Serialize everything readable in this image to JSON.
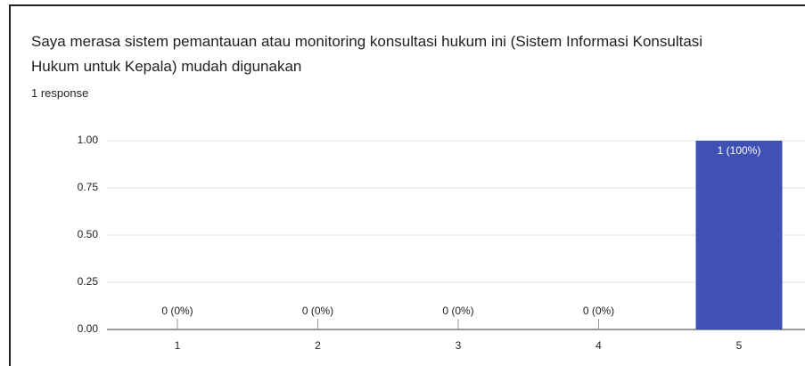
{
  "chart_data": {
    "type": "bar",
    "title": "Saya merasa sistem pemantauan atau monitoring konsultasi hukum ini (Sistem Informasi Konsultasi Hukum untuk Kepala) mudah digunakan",
    "subtitle": "1 response",
    "categories": [
      "1",
      "2",
      "3",
      "4",
      "5"
    ],
    "values": [
      0,
      0,
      0,
      0,
      1
    ],
    "value_labels": [
      "0 (0%)",
      "0 (0%)",
      "0 (0%)",
      "0 (0%)",
      "1 (100%)"
    ],
    "color": "#3f51b5",
    "ylim": [
      0,
      1
    ],
    "yticks": [
      {
        "value": 0,
        "label": "0.00"
      },
      {
        "value": 0.25,
        "label": "0.25"
      },
      {
        "value": 0.5,
        "label": "0.50"
      },
      {
        "value": 0.75,
        "label": "0.75"
      },
      {
        "value": 1,
        "label": "1.00"
      }
    ],
    "grid": true
  }
}
